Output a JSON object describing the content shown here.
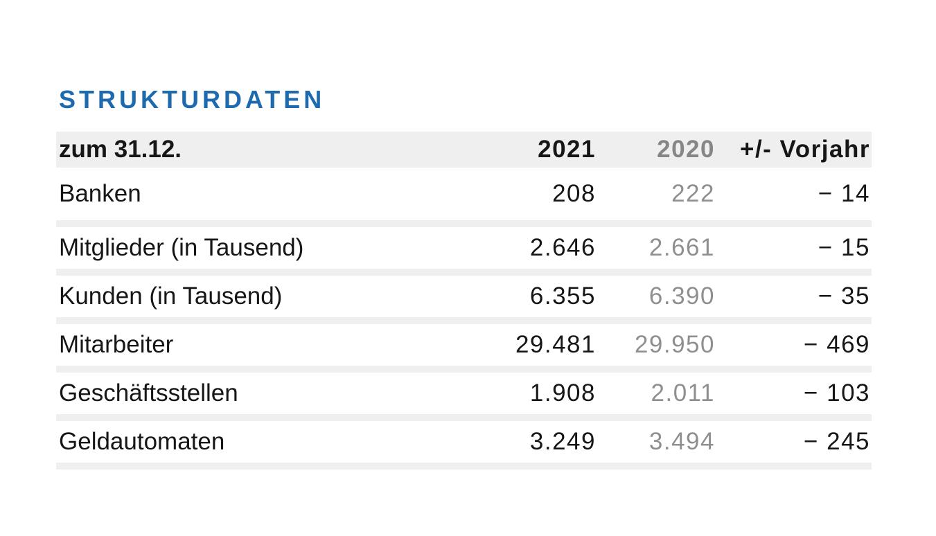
{
  "title": {
    "text": "STRUKTURDATEN"
  },
  "table": {
    "columns": [
      "zum 31.12.",
      "2021",
      "2020",
      "+/- Vorjahr"
    ],
    "rows": [
      {
        "label": "Banken",
        "v2021": "208",
        "v2020": "222",
        "delta": "− 14"
      },
      {
        "label": "Mitglieder (in Tausend)",
        "v2021": "2.646",
        "v2020": "2.661",
        "delta": "− 15"
      },
      {
        "label": "Kunden (in Tausend)",
        "v2021": "6.355",
        "v2020": "6.390",
        "delta": "− 35"
      },
      {
        "label": "Mitarbeiter",
        "v2021": "29.481",
        "v2020": "29.950",
        "delta": "− 469"
      },
      {
        "label": "Geschäftsstellen",
        "v2021": "1.908",
        "v2020": "2.011",
        "delta": "− 103"
      },
      {
        "label": "Geldautomaten",
        "v2021": "3.249",
        "v2020": "3.494",
        "delta": "− 245"
      }
    ]
  },
  "colors": {
    "accent_blue": "#1d6aae",
    "header_band": "#efefef",
    "separator": "#efefef",
    "text_black": "#161616",
    "muted_gray_header": "#868686",
    "muted_gray_values": "#8f8f8f",
    "page_background": "#ffffff"
  }
}
